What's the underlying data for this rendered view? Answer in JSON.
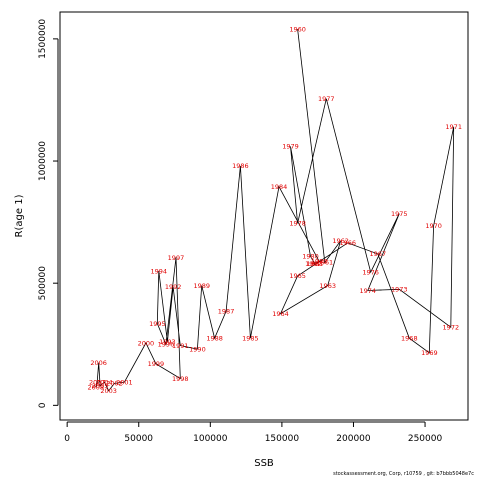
{
  "chart_data": {
    "type": "line",
    "xlabel": "SSB",
    "ylabel": "R(age 1)",
    "xlim": [
      -5000,
      280000
    ],
    "ylim": [
      -60000,
      1610000
    ],
    "xticks": [
      0,
      50000,
      100000,
      150000,
      200000,
      250000
    ],
    "yticks": [
      0,
      500000,
      1000000,
      1500000
    ],
    "xtick_labels": [
      "0",
      "50000",
      "100000",
      "150000",
      "200000",
      "250000"
    ],
    "ytick_labels": [
      "0",
      "500000",
      "1000000",
      "1500000"
    ],
    "grid": false,
    "label_color": "#e00000",
    "line_color": "#000000",
    "points": [
      {
        "year": "1960",
        "x": 161000,
        "y": 1540000
      },
      {
        "year": "1961",
        "x": 180000,
        "y": 585000
      },
      {
        "year": "1962",
        "x": 191000,
        "y": 673000
      },
      {
        "year": "1963",
        "x": 182000,
        "y": 490000
      },
      {
        "year": "1964",
        "x": 149000,
        "y": 375000
      },
      {
        "year": "1965",
        "x": 161000,
        "y": 530000
      },
      {
        "year": "1966",
        "x": 196000,
        "y": 665000
      },
      {
        "year": "1967",
        "x": 217000,
        "y": 620000
      },
      {
        "year": "1968",
        "x": 239000,
        "y": 275000
      },
      {
        "year": "1969",
        "x": 253000,
        "y": 215000
      },
      {
        "year": "1970",
        "x": 256000,
        "y": 735000
      },
      {
        "year": "1971",
        "x": 270000,
        "y": 1140000
      },
      {
        "year": "1972",
        "x": 268000,
        "y": 320000
      },
      {
        "year": "1973",
        "x": 232000,
        "y": 475000
      },
      {
        "year": "1974",
        "x": 210000,
        "y": 470000
      },
      {
        "year": "1975",
        "x": 232000,
        "y": 785000
      },
      {
        "year": "1976",
        "x": 212000,
        "y": 545000
      },
      {
        "year": "1977",
        "x": 181000,
        "y": 1255000
      },
      {
        "year": "1978",
        "x": 161000,
        "y": 745000
      },
      {
        "year": "1979",
        "x": 156000,
        "y": 1060000
      },
      {
        "year": "1980",
        "x": 170000,
        "y": 610000
      },
      {
        "year": "1981",
        "x": 173000,
        "y": 580000
      },
      {
        "year": "1982",
        "x": 172000,
        "y": 580000
      },
      {
        "year": "1983",
        "x": 176000,
        "y": 590000
      },
      {
        "year": "1984",
        "x": 148000,
        "y": 895000
      },
      {
        "year": "1985",
        "x": 128000,
        "y": 275000
      },
      {
        "year": "1986",
        "x": 121000,
        "y": 980000
      },
      {
        "year": "1987",
        "x": 111000,
        "y": 385000
      },
      {
        "year": "1988",
        "x": 103000,
        "y": 275000
      },
      {
        "year": "1989",
        "x": 94000,
        "y": 490000
      },
      {
        "year": "1990",
        "x": 91000,
        "y": 230000
      },
      {
        "year": "1991",
        "x": 79000,
        "y": 245000
      },
      {
        "year": "1992",
        "x": 74000,
        "y": 485000
      },
      {
        "year": "1993",
        "x": 70000,
        "y": 260000
      },
      {
        "year": "1994",
        "x": 64000,
        "y": 550000
      },
      {
        "year": "1995",
        "x": 63000,
        "y": 335000
      },
      {
        "year": "1996",
        "x": 69000,
        "y": 250000
      },
      {
        "year": "1997",
        "x": 76000,
        "y": 605000
      },
      {
        "year": "1998",
        "x": 79000,
        "y": 110000
      },
      {
        "year": "1999",
        "x": 62000,
        "y": 170000
      },
      {
        "year": "2000",
        "x": 55000,
        "y": 255000
      },
      {
        "year": "2001",
        "x": 40000,
        "y": 95000
      },
      {
        "year": "2002",
        "x": 33000,
        "y": 90000
      },
      {
        "year": "2003",
        "x": 29000,
        "y": 60000
      },
      {
        "year": "2004",
        "x": 26000,
        "y": 95000
      },
      {
        "year": "2005",
        "x": 23000,
        "y": 80000
      },
      {
        "year": "2006",
        "x": 22000,
        "y": 175000
      },
      {
        "year": "2007",
        "x": 21000,
        "y": 95000
      },
      {
        "year": "2008",
        "x": 20000,
        "y": 75000
      }
    ]
  },
  "footer": {
    "text": "stockassessment.org, Corp, r10759 , git: b7bbb5048e7c"
  }
}
